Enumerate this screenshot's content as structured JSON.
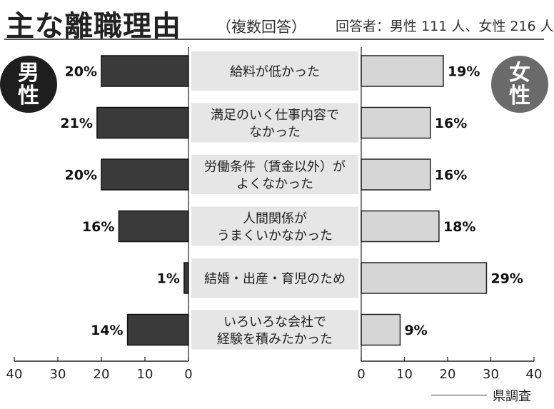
{
  "title": "主な離職理由",
  "subtitle": "（複数回答）",
  "respondents": "回答者：男性 111 人、女性 216 人",
  "source": "県調査",
  "chart_data": {
    "type": "bar",
    "orientation": "horizontal-butterfly",
    "categories": [
      [
        "給料が低かった"
      ],
      [
        "満足のいく仕事内容で",
        "なかった"
      ],
      [
        "労働条件（賃金以外）が",
        "よくなかった"
      ],
      [
        "人間関係が",
        "うまくいかなかった"
      ],
      [
        "結婚・出産・育児のため"
      ],
      [
        "いろいろな会社で",
        "経験を積みたかった"
      ]
    ],
    "series": [
      {
        "name": "男性",
        "values": [
          20,
          21,
          20,
          16,
          1,
          14
        ],
        "labels": [
          "20%",
          "21%",
          "20%",
          "16%",
          "1%",
          "14%"
        ],
        "color": "#3a3a3a",
        "badge_color": "#1e1e1e",
        "badge_lines": [
          "男",
          "性"
        ]
      },
      {
        "name": "女性",
        "values": [
          19,
          16,
          16,
          18,
          29,
          9
        ],
        "labels": [
          "19%",
          "16%",
          "16%",
          "18%",
          "29%",
          "9%"
        ],
        "color": "#d6d6d6",
        "badge_color": "#6a6a6a",
        "badge_lines": [
          "女",
          "性"
        ]
      }
    ],
    "xlim": [
      0,
      40
    ],
    "ticks": [
      0,
      10,
      20,
      30,
      40
    ],
    "tick_labels": [
      "0",
      "10",
      "20",
      "30",
      "40"
    ],
    "grid": false,
    "label_band_color": "#e6e6e6"
  }
}
